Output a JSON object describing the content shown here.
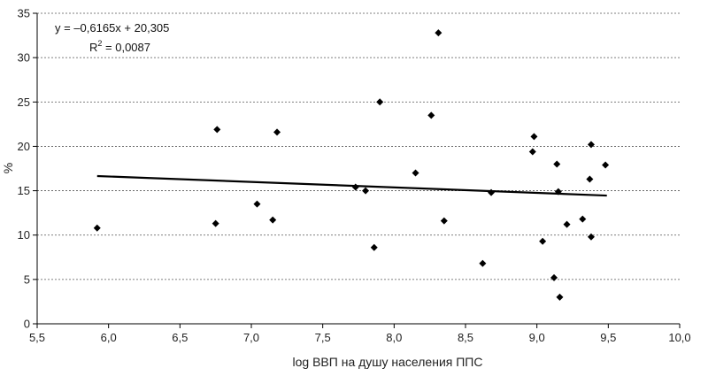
{
  "chart_data": {
    "type": "scatter",
    "xlabel": "log ВВП на душу населения ППС",
    "ylabel": "%",
    "xlim": [
      5.5,
      10.0
    ],
    "ylim": [
      0,
      35
    ],
    "xticks": [
      "5,5",
      "6,0",
      "6,5",
      "7,0",
      "7,5",
      "8,0",
      "8,5",
      "9,0",
      "9,5",
      "10,0"
    ],
    "yticks": [
      "0",
      "5",
      "10",
      "15",
      "20",
      "25",
      "30",
      "35"
    ],
    "grid": "horizontal-dashed",
    "trendline": {
      "equation_label": "y = –0,6165x + 20,305",
      "r2_prefix": "R",
      "r2_sup": "2",
      "r2_value": " = 0,0087",
      "slope": -0.6165,
      "intercept": 20.305,
      "x_range": [
        5.92,
        9.49
      ]
    },
    "points": [
      {
        "x": 5.92,
        "y": 10.8
      },
      {
        "x": 6.75,
        "y": 11.3
      },
      {
        "x": 6.76,
        "y": 21.9
      },
      {
        "x": 7.04,
        "y": 13.5
      },
      {
        "x": 7.15,
        "y": 11.7
      },
      {
        "x": 7.18,
        "y": 21.6
      },
      {
        "x": 7.73,
        "y": 15.4
      },
      {
        "x": 7.8,
        "y": 15.0
      },
      {
        "x": 7.86,
        "y": 8.6
      },
      {
        "x": 7.9,
        "y": 25.0
      },
      {
        "x": 8.15,
        "y": 17.0
      },
      {
        "x": 8.26,
        "y": 23.5
      },
      {
        "x": 8.31,
        "y": 32.8
      },
      {
        "x": 8.35,
        "y": 11.6
      },
      {
        "x": 8.62,
        "y": 6.8
      },
      {
        "x": 8.68,
        "y": 14.8
      },
      {
        "x": 8.97,
        "y": 19.4
      },
      {
        "x": 8.98,
        "y": 21.1
      },
      {
        "x": 9.04,
        "y": 9.3
      },
      {
        "x": 9.12,
        "y": 5.2
      },
      {
        "x": 9.14,
        "y": 18.0
      },
      {
        "x": 9.15,
        "y": 14.9
      },
      {
        "x": 9.16,
        "y": 3.0
      },
      {
        "x": 9.21,
        "y": 11.2
      },
      {
        "x": 9.32,
        "y": 11.8
      },
      {
        "x": 9.37,
        "y": 16.3
      },
      {
        "x": 9.38,
        "y": 9.8
      },
      {
        "x": 9.38,
        "y": 20.2
      },
      {
        "x": 9.48,
        "y": 17.9
      }
    ]
  }
}
